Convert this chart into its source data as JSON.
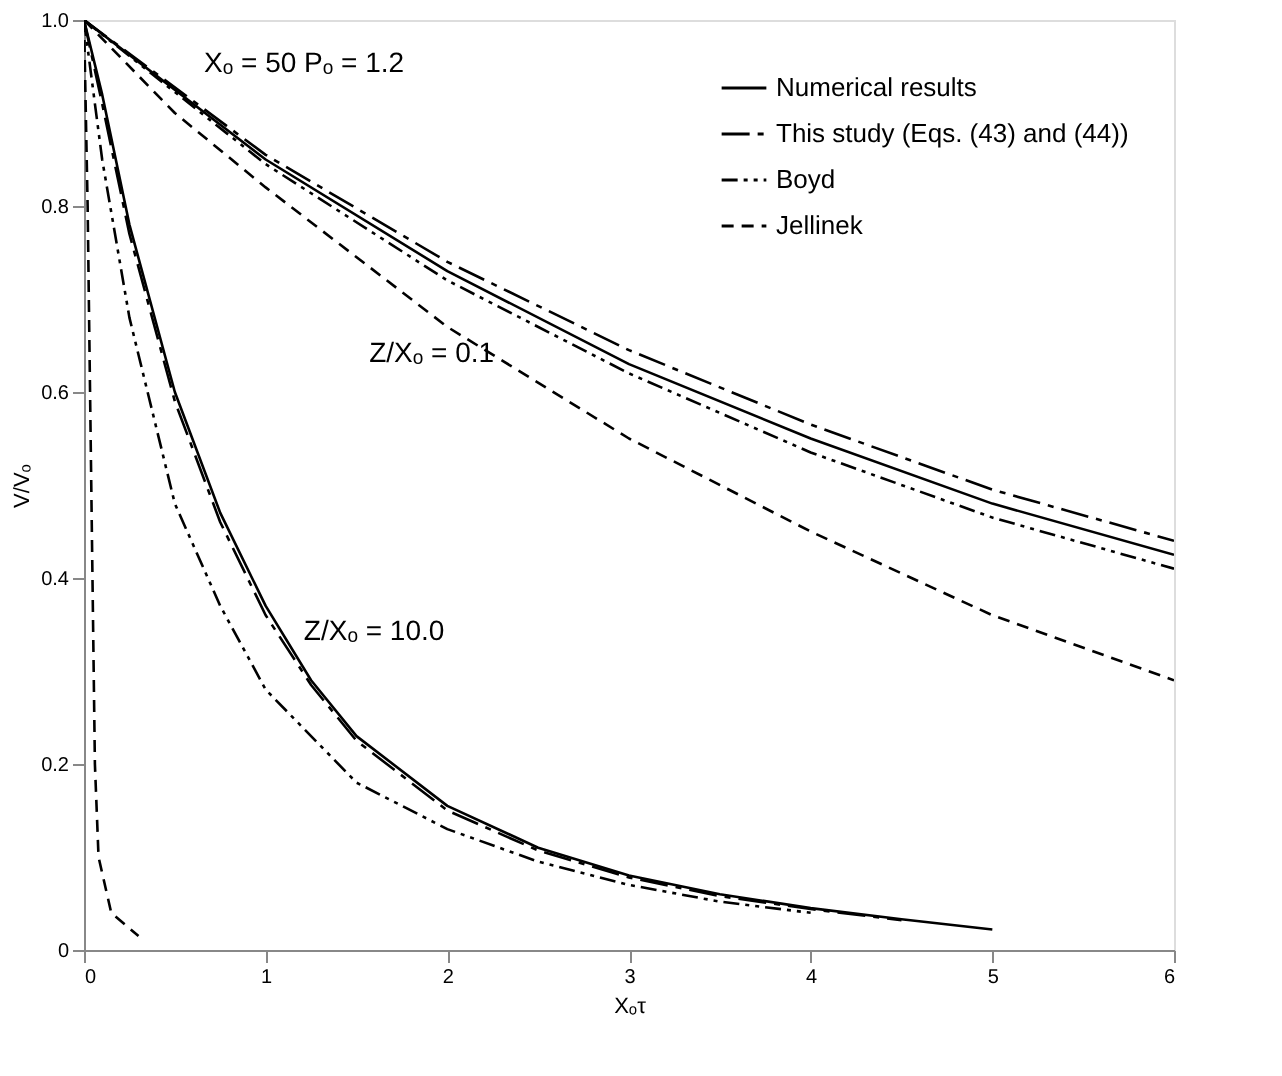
{
  "chart_data": {
    "type": "line",
    "xlabel": "Xₒτ",
    "ylabel": "V/Vₒ",
    "xlim": [
      0,
      6
    ],
    "xticks": [
      0,
      1,
      2,
      3,
      4,
      5,
      6
    ],
    "ylim": [
      0,
      1.0
    ],
    "yticks": [
      0,
      0.2,
      0.4,
      0.6,
      0.8,
      {
        "value": 1.0,
        "label": "1.0"
      }
    ],
    "grid": false,
    "legend": "top right",
    "series": [
      {
        "name": "Numerical results",
        "color": "#000000",
        "line_style": "solid",
        "x": [
          0,
          1,
          2,
          3,
          4,
          5,
          6
        ],
        "values": [
          1.0,
          0.85,
          0.73,
          0.63,
          0.55,
          0.48,
          0.425
        ]
      },
      {
        "name": "This study (Eqs. (43) and (44))",
        "color": "#000000",
        "line_style": "longdashdot",
        "x": [
          0,
          1,
          2,
          3,
          4,
          5,
          6
        ],
        "values": [
          1.0,
          0.855,
          0.74,
          0.645,
          0.565,
          0.495,
          0.44
        ]
      },
      {
        "name": "Boyd",
        "color": "#000000",
        "line_style": "dashdotdot",
        "x": [
          0,
          1,
          2,
          3,
          4,
          5,
          6
        ],
        "values": [
          1.0,
          0.845,
          0.72,
          0.62,
          0.535,
          0.465,
          0.41
        ]
      },
      {
        "name": "Jellinek",
        "color": "#000000",
        "line_style": "dashed",
        "x": [
          0,
          0.5,
          1,
          2,
          3,
          4,
          5,
          6
        ],
        "values": [
          1.0,
          0.9,
          0.82,
          0.67,
          0.55,
          0.45,
          0.36,
          0.29
        ]
      },
      {
        "color": "#000000",
        "line_style": "solid",
        "x": [
          0,
          0.1,
          0.25,
          0.5,
          0.75,
          1.0,
          1.25,
          1.5,
          2,
          2.5,
          3,
          3.5,
          4,
          4.5,
          5
        ],
        "values": [
          1.0,
          0.92,
          0.78,
          0.6,
          0.47,
          0.37,
          0.29,
          0.23,
          0.155,
          0.11,
          0.08,
          0.06,
          0.045,
          0.033,
          0.022
        ]
      },
      {
        "color": "#000000",
        "line_style": "longdashdot",
        "x": [
          0,
          0.1,
          0.25,
          0.5,
          0.75,
          1.0,
          1.25,
          1.5,
          2,
          2.5,
          3,
          3.5,
          4,
          4.5
        ],
        "values": [
          1.0,
          0.91,
          0.77,
          0.59,
          0.46,
          0.36,
          0.285,
          0.225,
          0.15,
          0.107,
          0.078,
          0.058,
          0.044,
          0.032
        ]
      },
      {
        "color": "#000000",
        "line_style": "dashdotdot",
        "x": [
          0,
          0.1,
          0.25,
          0.5,
          0.75,
          1.0,
          1.5,
          2,
          2.5,
          3,
          3.5,
          4
        ],
        "values": [
          1.0,
          0.85,
          0.68,
          0.48,
          0.37,
          0.28,
          0.18,
          0.13,
          0.095,
          0.07,
          0.052,
          0.04
        ]
      },
      {
        "color": "#000000",
        "line_style": "dashed",
        "x": [
          0,
          0.02,
          0.04,
          0.06,
          0.08,
          0.15,
          0.3
        ],
        "values": [
          1.0,
          0.8,
          0.5,
          0.2,
          0.1,
          0.04,
          0.015
        ]
      }
    ],
    "annotations": [
      "Xₒ = 50    Pₒ = 1.2",
      {
        "text": "Z/Xₒ = 0.1",
        "x": 2.5,
        "y": 0.68
      },
      {
        "text": "Z/Xₒ = 10.0",
        "x": 1.1,
        "y": 0.338
      }
    ]
  }
}
